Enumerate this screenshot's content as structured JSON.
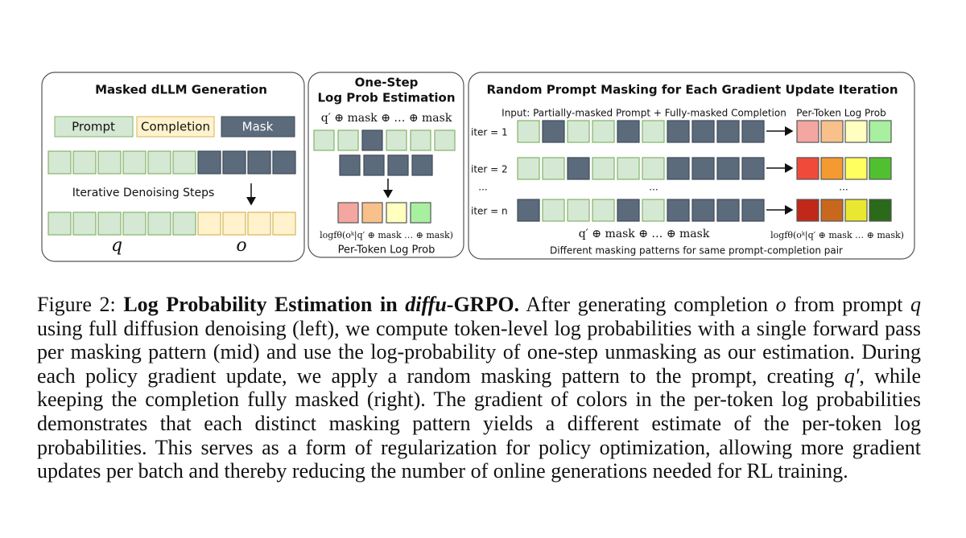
{
  "left_panel": {
    "title": "Masked dLLM Generation",
    "legend": [
      "Prompt",
      "Completion",
      "Mask"
    ],
    "step_label": "Iterative Denoising Steps",
    "prompt_symbol": "q",
    "completion_symbol": "o"
  },
  "middle_panel": {
    "title": [
      "One-Step",
      "Log Prob Estimation"
    ],
    "input_formula": "q′ ⊕ mask ⊕ … ⊕ mask",
    "output_formula": "logfθ(oᵏ|q′ ⊕ mask … ⊕ mask)",
    "output_label": "Per-Token Log Prob"
  },
  "right_panel": {
    "title": "Random Prompt Masking for Each Gradient Update Iteration",
    "input_header": "Input: Partially-masked Prompt + Fully-masked Completion",
    "output_header": "Per-Token Log Prob",
    "iterations": [
      "iter = 1",
      "iter = 2",
      "iter = n"
    ],
    "ellipsis": "...",
    "input_formula": "q′ ⊕ mask ⊕ … ⊕ mask",
    "output_formula": "logfθ(oᵏ|q′ ⊕ mask … ⊕ mask)",
    "footer": "Different masking patterns for same prompt-completion pair"
  },
  "caption": {
    "label": "Figure 2:",
    "title_start": "Log Probability Estimation in ",
    "title_em": "diffu",
    "title_end": "-GRPO.",
    "body": [
      " After generating completion ",
      "o",
      " from prompt ",
      "q",
      " using full diffusion denoising (left), we compute token-level log probabilities with a single forward pass per masking pattern (mid) and use the log-probability of one-step unmasking as our estimation. During each policy gradient update, we apply a random masking pattern to the prompt, creating ",
      "q′",
      ", while keeping the completion fully masked (right). The gradient of colors in the per-token log probabilities demonstrates that each distinct masking pattern yields a different estimate of the per-token log probabilities. This serves as a form of regularization for policy optimization, allowing more gradient updates per batch and thereby reducing the number of online generations needed for RL training."
    ]
  }
}
